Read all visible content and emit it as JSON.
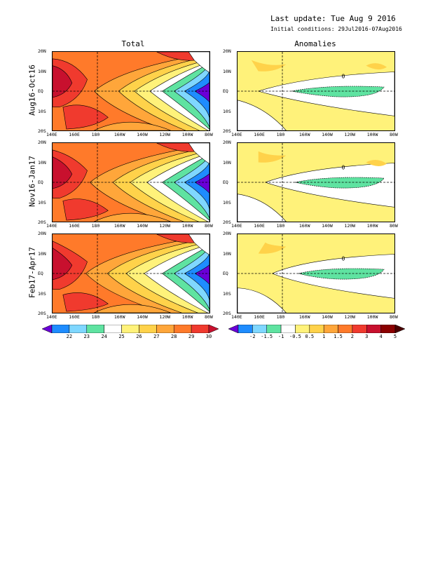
{
  "header": {
    "last_update": "Last update: Tue Aug 9 2016",
    "initial_conditions": "Initial conditions: 29Jul2016-07Aug2016"
  },
  "columns": {
    "total": "Total",
    "anomalies": "Anomalies"
  },
  "rows": [
    "Aug16-Oct16",
    "Nov16-Jan17",
    "Feb17-Apr17"
  ],
  "map_axes": {
    "lon_labels": [
      "140E",
      "160E",
      "180",
      "160W",
      "140W",
      "120W",
      "100W",
      "80W"
    ],
    "lat_labels": [
      "20N",
      "10N",
      "EQ",
      "10S",
      "20S"
    ],
    "lon_range": [
      "140E",
      "80W"
    ],
    "lat_range": [
      "20S",
      "20N"
    ]
  },
  "total_colorbar": {
    "labels": [
      "22",
      "23",
      "24",
      "25",
      "26",
      "27",
      "28",
      "29",
      "30"
    ],
    "colors": [
      "#6a00d8",
      "#1e8cff",
      "#7fd7ff",
      "#5fe3a1",
      "#ffffff",
      "#fff27a",
      "#ffd24a",
      "#ffa63a",
      "#ff7a2a",
      "#f03a2e",
      "#c8102e"
    ]
  },
  "anomaly_colorbar": {
    "labels": [
      "-2",
      "-1.5",
      "-1",
      "-0.5",
      "0.5",
      "1",
      "1.5",
      "2",
      "3",
      "4",
      "5"
    ],
    "colors": [
      "#6a00d8",
      "#1e8cff",
      "#7fd7ff",
      "#5fe3a1",
      "#ffffff",
      "#fff27a",
      "#ffd24a",
      "#ffa63a",
      "#ff7a2a",
      "#f03a2e",
      "#c8102e",
      "#8a0000",
      "#4a0000"
    ]
  },
  "contour_labels": {
    "zero": "0"
  }
}
